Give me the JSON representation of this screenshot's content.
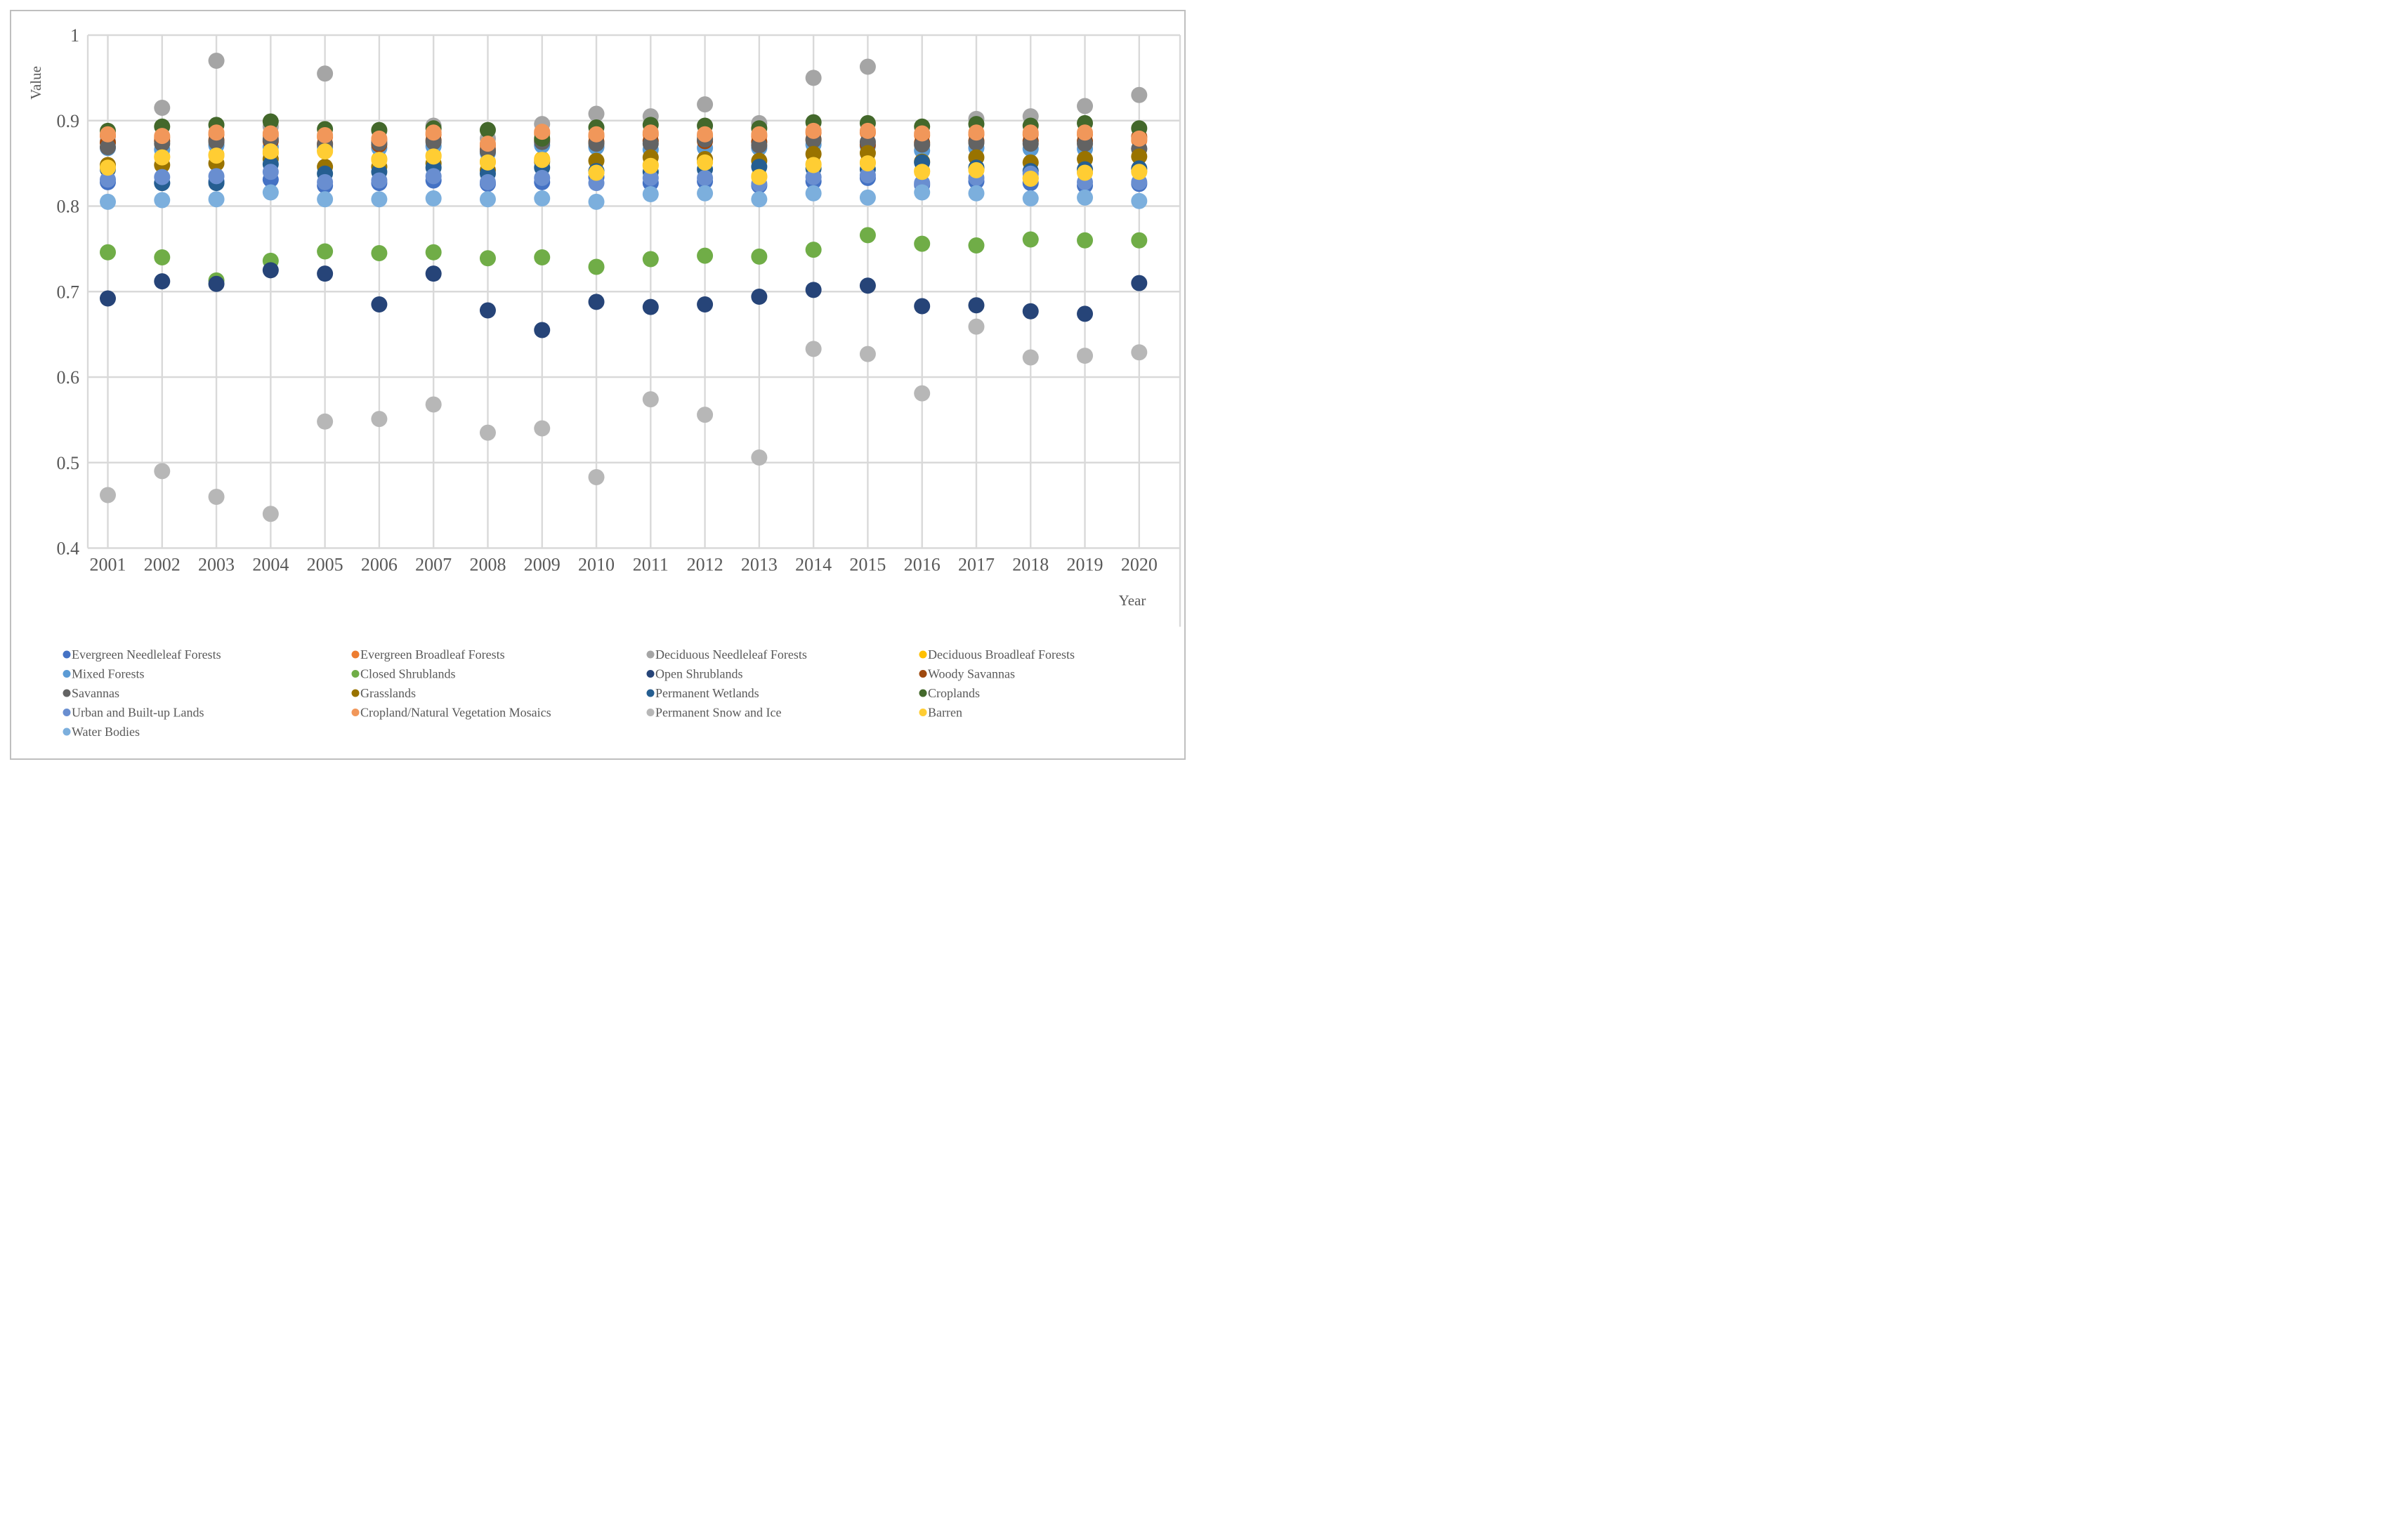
{
  "figure": {
    "y_axis_title": "Value",
    "x_axis_title": "Year"
  },
  "chart_data": {
    "type": "scatter",
    "title": "",
    "xlabel": "Year",
    "ylabel": "Value",
    "x": [
      2001,
      2002,
      2003,
      2004,
      2005,
      2006,
      2007,
      2008,
      2009,
      2010,
      2011,
      2012,
      2013,
      2014,
      2015,
      2016,
      2017,
      2018,
      2019,
      2020
    ],
    "ylim": [
      0.4,
      1.0
    ],
    "y_ticks": [
      1,
      0.9,
      0.8,
      0.7,
      0.6,
      0.5,
      0.4
    ],
    "y_tick_labels": [
      "1",
      "0.9",
      "0.8",
      "0.7",
      "0.6",
      "0.5",
      "0.4"
    ],
    "grid": true,
    "grid_color": "#d9d9d9",
    "text_color": "#595959",
    "legend_position": "bottom",
    "legend_columns": 4,
    "series": [
      {
        "name": "Evergreen Needleleaf Forests",
        "color": "#4472C4",
        "values": [
          0.828,
          0.827,
          0.829,
          0.831,
          0.824,
          0.827,
          0.83,
          0.826,
          0.828,
          0.834,
          0.827,
          0.829,
          0.824,
          0.829,
          0.833,
          0.825,
          0.829,
          0.827,
          0.824,
          0.826
        ]
      },
      {
        "name": "Evergreen Broadleaf Forests",
        "color": "#ED7D31",
        "values": [
          0.882,
          0.88,
          0.884,
          0.883,
          0.881,
          0.877,
          0.884,
          0.871,
          0.885,
          0.882,
          0.884,
          0.882,
          0.882,
          0.886,
          0.886,
          0.883,
          0.884,
          0.884,
          0.884,
          0.877
        ]
      },
      {
        "name": "Deciduous Needleleaf Forests",
        "color": "#A5A5A5",
        "values": [
          0.876,
          0.915,
          0.97,
          0.893,
          0.955,
          0.888,
          0.894,
          0.879,
          0.896,
          0.908,
          0.905,
          0.919,
          0.897,
          0.95,
          0.963,
          0.871,
          0.902,
          0.905,
          0.917,
          0.93
        ]
      },
      {
        "name": "Deciduous Broadleaf Forests",
        "color": "#FFC000",
        "values": [
          0.846,
          0.858,
          0.86,
          0.862,
          0.865,
          0.855,
          0.859,
          0.852,
          0.855,
          0.84,
          0.848,
          0.852,
          0.835,
          0.849,
          0.851,
          0.841,
          0.843,
          0.833,
          0.84,
          0.841
        ]
      },
      {
        "name": "Mixed Forests",
        "color": "#5B9BD5",
        "values": [
          0.868,
          0.866,
          0.871,
          0.869,
          0.869,
          0.868,
          0.87,
          0.862,
          0.871,
          0.869,
          0.866,
          0.868,
          0.868,
          0.872,
          0.87,
          0.865,
          0.868,
          0.867,
          0.867,
          0.867
        ]
      },
      {
        "name": "Closed Shrublands",
        "color": "#70AD47",
        "values": [
          0.746,
          0.74,
          0.713,
          0.736,
          0.747,
          0.745,
          0.746,
          0.739,
          0.74,
          0.729,
          0.738,
          0.742,
          0.741,
          0.749,
          0.766,
          0.756,
          0.754,
          0.761,
          0.76,
          0.76
        ]
      },
      {
        "name": "Open Shrublands",
        "color": "#264478",
        "values": [
          0.692,
          0.712,
          0.709,
          0.725,
          0.721,
          0.685,
          0.721,
          0.678,
          0.655,
          0.688,
          0.682,
          0.685,
          0.694,
          0.702,
          0.707,
          0.683,
          0.684,
          0.677,
          0.674,
          0.71
        ]
      },
      {
        "name": "Woody Savannas",
        "color": "#9E480E",
        "values": [
          0.874,
          0.876,
          0.877,
          0.876,
          0.873,
          0.872,
          0.877,
          0.866,
          0.877,
          0.875,
          0.876,
          0.876,
          0.875,
          0.878,
          0.872,
          0.874,
          0.876,
          0.876,
          0.876,
          0.881
        ]
      },
      {
        "name": "Savannas",
        "color": "#636363",
        "values": [
          0.869,
          0.873,
          0.875,
          0.878,
          0.872,
          0.874,
          0.875,
          0.864,
          0.875,
          0.873,
          0.873,
          0.878,
          0.871,
          0.877,
          0.875,
          0.872,
          0.874,
          0.873,
          0.873,
          0.867
        ]
      },
      {
        "name": "Grasslands",
        "color": "#997300",
        "values": [
          0.848,
          0.848,
          0.85,
          0.855,
          0.846,
          0.846,
          0.85,
          0.842,
          0.852,
          0.853,
          0.857,
          0.855,
          0.853,
          0.861,
          0.862,
          0.852,
          0.857,
          0.851,
          0.855,
          0.858
        ]
      },
      {
        "name": "Permanent Wetlands",
        "color": "#255E91",
        "values": [
          0.843,
          0.827,
          0.827,
          0.849,
          0.838,
          0.84,
          0.845,
          0.838,
          0.845,
          0.841,
          0.84,
          0.843,
          0.846,
          0.844,
          0.843,
          0.851,
          0.845,
          0.841,
          0.843,
          0.844
        ]
      },
      {
        "name": "Croplands",
        "color": "#43682B",
        "values": [
          0.888,
          0.893,
          0.895,
          0.899,
          0.89,
          0.889,
          0.891,
          0.889,
          0.879,
          0.892,
          0.895,
          0.894,
          0.891,
          0.898,
          0.897,
          0.893,
          0.896,
          0.894,
          0.897,
          0.891
        ]
      },
      {
        "name": "Urban and Built-up Lands",
        "color": "#698ED0",
        "values": [
          0.831,
          0.834,
          0.835,
          0.84,
          0.828,
          0.83,
          0.835,
          0.828,
          0.833,
          0.827,
          0.833,
          0.833,
          0.826,
          0.834,
          0.836,
          0.827,
          0.833,
          0.838,
          0.828,
          0.828
        ]
      },
      {
        "name": "Cropland/Natural Vegetation Mosaics",
        "color": "#F1975A",
        "values": [
          0.884,
          0.882,
          0.886,
          0.885,
          0.883,
          0.879,
          0.886,
          0.873,
          0.887,
          0.884,
          0.886,
          0.884,
          0.884,
          0.888,
          0.888,
          0.885,
          0.886,
          0.886,
          0.886,
          0.879
        ]
      },
      {
        "name": "Permanent Snow and Ice",
        "color": "#B7B7B7",
        "values": [
          0.462,
          0.49,
          0.46,
          0.44,
          0.548,
          0.551,
          0.568,
          0.535,
          0.54,
          0.483,
          0.574,
          0.556,
          0.506,
          0.633,
          0.627,
          0.581,
          0.659,
          0.623,
          0.625,
          0.629
        ]
      },
      {
        "name": "Barren",
        "color": "#FFCD33",
        "values": [
          0.845,
          0.857,
          0.859,
          0.864,
          0.864,
          0.854,
          0.858,
          0.851,
          0.854,
          0.839,
          0.847,
          0.851,
          0.834,
          0.848,
          0.85,
          0.84,
          0.842,
          0.832,
          0.839,
          0.84
        ]
      },
      {
        "name": "Water Bodies",
        "color": "#7CAFDD",
        "values": [
          0.805,
          0.807,
          0.808,
          0.816,
          0.808,
          0.808,
          0.809,
          0.808,
          0.809,
          0.805,
          0.814,
          0.815,
          0.808,
          0.815,
          0.81,
          0.816,
          0.815,
          0.809,
          0.81,
          0.806
        ]
      }
    ]
  }
}
